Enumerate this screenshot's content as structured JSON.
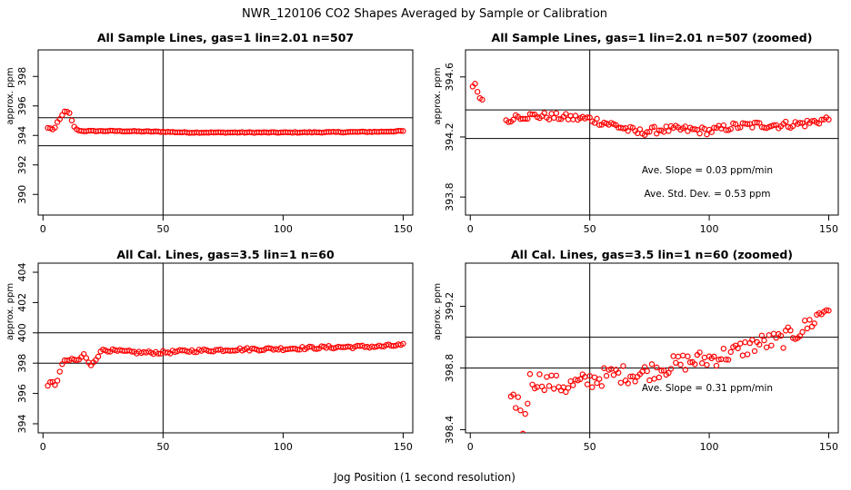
{
  "figure_title": "NWR_120106  CO2 Shapes Averaged by Sample or Calibration",
  "x_axis_label": "Jog Position (1 second resolution)",
  "marker_color": "#ff0000",
  "chart_data": [
    {
      "type": "scatter",
      "title": "All Sample Lines, gas=1 lin=2.01 n=507",
      "ylabel": "approx. ppm",
      "xlim": [
        -2,
        154
      ],
      "ylim": [
        388.6,
        399.8
      ],
      "x_ticks": [
        0,
        50,
        100,
        150
      ],
      "y_ticks": [
        390,
        392,
        394,
        396,
        398
      ],
      "grid": false,
      "hlines": [
        395.2,
        393.3
      ],
      "vline": 50,
      "series_desc": {
        "x_start": 2,
        "x_end": 150,
        "knots_x": [
          2,
          3,
          4,
          5,
          6,
          7,
          8,
          9,
          10,
          11,
          12,
          13,
          14,
          15,
          16,
          17,
          20,
          30,
          50,
          60,
          70,
          80,
          100,
          120,
          140,
          150
        ],
        "knots_y": [
          394.5,
          394.5,
          394.4,
          394.5,
          394.9,
          395.1,
          395.4,
          395.6,
          395.6,
          395.5,
          395.0,
          394.6,
          394.4,
          394.35,
          394.3,
          394.3,
          394.3,
          394.3,
          394.25,
          394.2,
          394.2,
          394.2,
          394.2,
          394.22,
          394.25,
          394.3
        ],
        "noise": 0.03
      },
      "annotations": []
    },
    {
      "type": "scatter",
      "title": "All Sample Lines, gas=1 lin=2.01 n=507 (zoomed)",
      "ylabel": "approx. ppm",
      "xlim": [
        -2,
        154
      ],
      "ylim": [
        393.68,
        394.78
      ],
      "x_ticks": [
        0,
        50,
        100,
        150
      ],
      "y_ticks": [
        393.8,
        394.2,
        394.6
      ],
      "grid": false,
      "hlines": [
        394.38,
        394.19
      ],
      "vline": 50,
      "series_desc": {
        "x_start": 1,
        "x_end": 150,
        "knots_x": [
          1,
          2,
          3,
          4,
          5,
          6,
          7,
          8,
          9,
          10,
          11,
          12,
          13,
          14,
          15,
          16,
          18,
          20,
          30,
          40,
          50,
          60,
          70,
          80,
          90,
          100,
          110,
          120,
          130,
          140,
          150
        ],
        "knots_y": [
          394.52,
          394.54,
          394.51,
          394.46,
          394.45,
          null,
          null,
          null,
          null,
          null,
          null,
          null,
          null,
          394.56,
          394.33,
          394.28,
          394.34,
          394.34,
          394.34,
          394.33,
          394.32,
          394.28,
          394.23,
          394.25,
          394.25,
          394.24,
          394.27,
          394.28,
          394.28,
          394.29,
          394.32
        ],
        "noise": 0.025
      },
      "annotations": [
        "Ave. Slope =  0.03  ppm/min",
        "Ave. Std. Dev. =  0.53  ppm"
      ]
    },
    {
      "type": "scatter",
      "title": "All Cal. Lines, gas=3.5 lin=1 n=60",
      "ylabel": "approx. ppm",
      "xlim": [
        -2,
        154
      ],
      "ylim": [
        393.4,
        404.6
      ],
      "x_ticks": [
        0,
        50,
        100,
        150
      ],
      "y_ticks": [
        394,
        396,
        398,
        400,
        402,
        404
      ],
      "grid": false,
      "hlines": [
        400.0,
        398.0
      ],
      "vline": 50,
      "series_desc": {
        "x_start": 2,
        "x_end": 150,
        "knots_x": [
          2,
          4,
          5,
          6,
          7,
          8,
          9,
          10,
          12,
          15,
          17,
          18,
          19,
          20,
          22,
          24,
          25,
          30,
          40,
          50,
          60,
          80,
          100,
          120,
          140,
          150
        ],
        "knots_y": [
          396.6,
          396.7,
          396.5,
          396.9,
          397.5,
          397.9,
          398.1,
          398.2,
          398.2,
          398.2,
          398.6,
          398.3,
          398.0,
          397.9,
          398.3,
          398.7,
          398.9,
          398.8,
          398.7,
          398.7,
          398.8,
          398.9,
          398.95,
          399.05,
          399.1,
          399.2
        ],
        "noise": 0.1
      },
      "annotations": []
    },
    {
      "type": "scatter",
      "title": "All Cal. Lines, gas=3.5 lin=1 n=60 (zoomed)",
      "ylabel": "approx. ppm",
      "xlim": [
        -2,
        154
      ],
      "ylim": [
        398.38,
        399.48
      ],
      "x_ticks": [
        0,
        50,
        100,
        150
      ],
      "y_ticks": [
        398.4,
        398.8,
        399.2
      ],
      "grid": false,
      "hlines": [
        399.0,
        398.8
      ],
      "vline": 50,
      "series_desc": {
        "x_start": 17,
        "x_end": 150,
        "knots_x": [
          17,
          20,
          22,
          25,
          30,
          40,
          50,
          60,
          70,
          80,
          90,
          100,
          110,
          120,
          130,
          140,
          150
        ],
        "knots_y": [
          398.56,
          398.6,
          398.4,
          398.72,
          398.72,
          398.68,
          398.72,
          398.76,
          398.76,
          398.8,
          398.84,
          398.86,
          398.9,
          398.96,
          398.98,
          399.06,
          399.2
        ],
        "noise": 0.06
      },
      "annotations": [
        "Ave. Slope =  0.31  ppm/min"
      ]
    }
  ]
}
